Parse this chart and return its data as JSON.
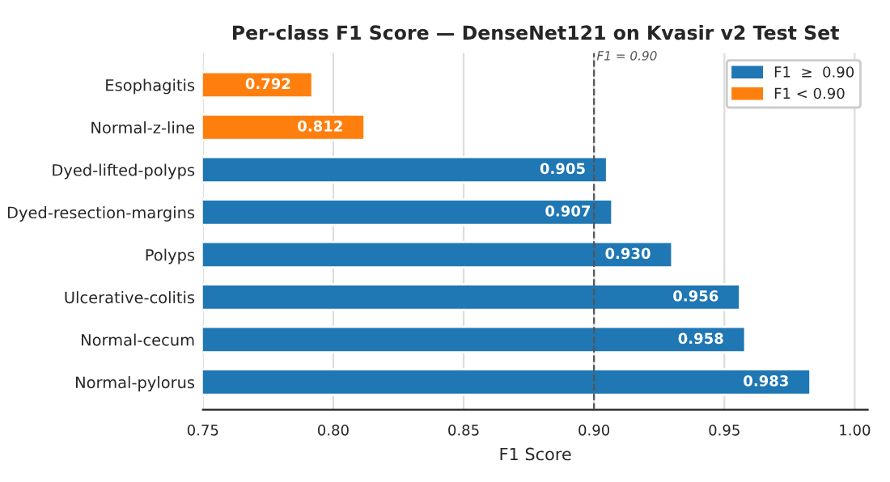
{
  "chart_data": {
    "type": "bar",
    "orientation": "horizontal",
    "title": "Per-class F1 Score — DenseNet121 on Kvasir v2 Test Set",
    "xlabel": "F1 Score",
    "categories": [
      "Esophagitis",
      "Normal-z-line",
      "Dyed-lifted-polyps",
      "Dyed-resection-margins",
      "Polyps",
      "Ulcerative-colitis",
      "Normal-cecum",
      "Normal-pylorus"
    ],
    "series": [
      {
        "name": "F1  ≥  0.90",
        "color": "#1f77b4",
        "values": [
          null,
          null,
          0.905,
          0.907,
          0.93,
          0.956,
          0.958,
          0.983
        ],
        "value_labels": [
          null,
          null,
          "0.905",
          "0.907",
          "0.930",
          "0.956",
          "0.958",
          "0.983"
        ]
      },
      {
        "name": "F1 < 0.90",
        "color": "#ff7f0e",
        "values": [
          0.792,
          0.812,
          null,
          null,
          null,
          null,
          null,
          null
        ],
        "value_labels": [
          "0.792",
          "0.812",
          null,
          null,
          null,
          null,
          null,
          null
        ]
      }
    ],
    "xlim": [
      0.75,
      1.005
    ],
    "xticks": [
      {
        "value": 0.75,
        "label": "0.75"
      },
      {
        "value": 0.8,
        "label": "0.80"
      },
      {
        "value": 0.85,
        "label": "0.85"
      },
      {
        "value": 0.9,
        "label": "0.90"
      },
      {
        "value": 0.95,
        "label": "0.95"
      },
      {
        "value": 1.0,
        "label": "1.00"
      }
    ],
    "ref_lines": [
      {
        "axis": "x",
        "value": 0.9,
        "label": "F1 = 0.90",
        "color": "#555555",
        "line_style": "dashed"
      }
    ],
    "grid": "x",
    "legend": "top right"
  }
}
